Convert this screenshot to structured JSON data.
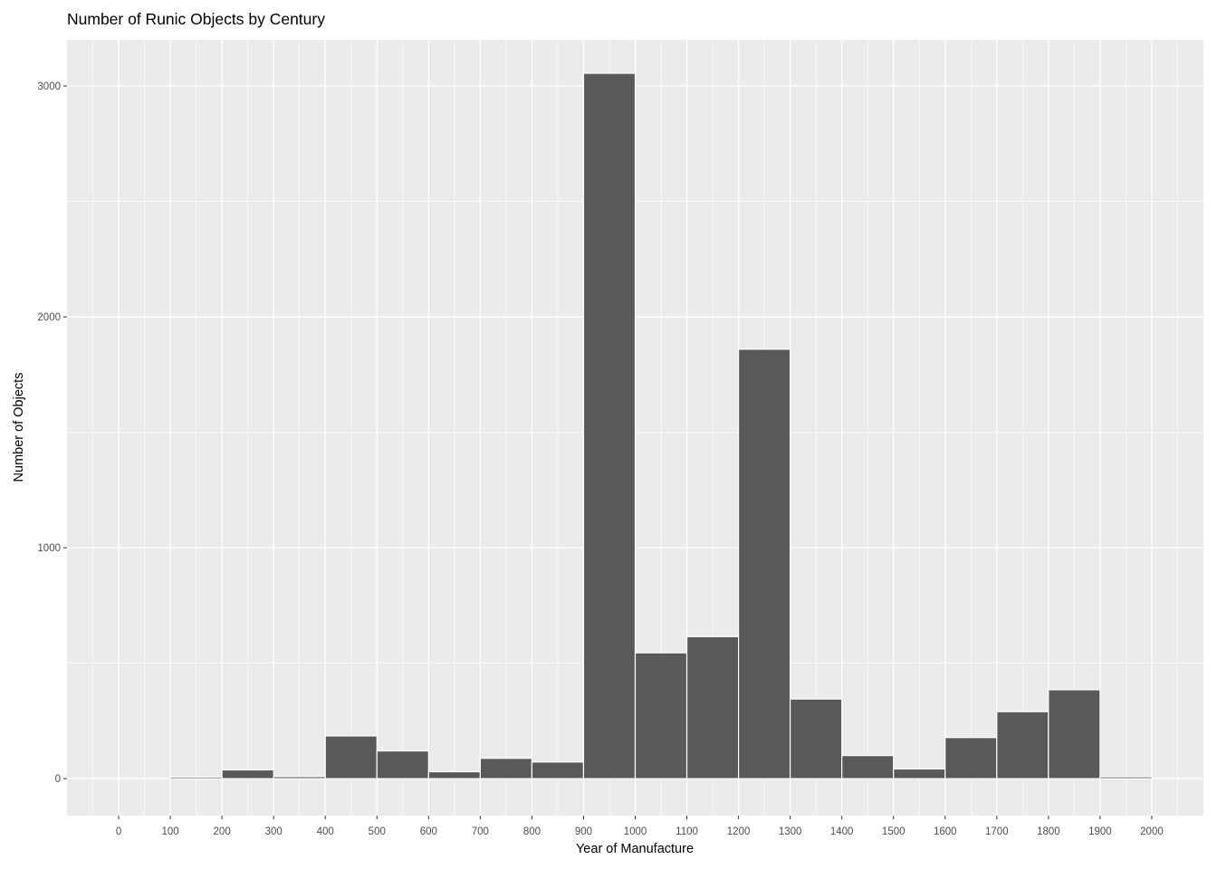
{
  "chart_data": {
    "type": "bar",
    "title": "Number of Runic Objects by Century",
    "xlabel": "Year of Manufacture",
    "ylabel": "Number of Objects",
    "bin_width": 100,
    "x": [
      100,
      200,
      300,
      400,
      500,
      600,
      700,
      800,
      900,
      1000,
      1100,
      1200,
      1300,
      1400,
      1500,
      1600,
      1700,
      1800,
      1900
    ],
    "values": [
      7,
      38,
      9,
      185,
      120,
      30,
      88,
      72,
      3055,
      545,
      615,
      1860,
      345,
      100,
      42,
      178,
      290,
      385,
      8
    ],
    "xlim": [
      -100,
      2100
    ],
    "ylim": [
      -160,
      3200
    ],
    "x_ticks": [
      "0",
      "100",
      "200",
      "300",
      "400",
      "500",
      "600",
      "700",
      "800",
      "900",
      "1000",
      "1100",
      "1200",
      "1300",
      "1400",
      "1500",
      "1600",
      "1700",
      "1800",
      "1900",
      "2000"
    ],
    "y_ticks": [
      "0",
      "1000",
      "2000",
      "3000"
    ],
    "grid": true,
    "colors": {
      "bar_fill": "#595959",
      "bar_outline": "#ffffff",
      "panel_background": "#ebebeb",
      "grid": "#ffffff"
    }
  }
}
